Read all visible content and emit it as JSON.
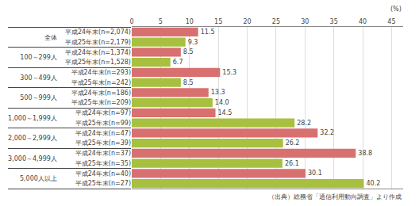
{
  "chart_data": {
    "type": "bar",
    "orientation": "horizontal",
    "categories": [
      [
        "全体",
        "平成24年末(n=2,074)"
      ],
      [
        "全体",
        "平成25年末(n=2,179)"
      ],
      [
        "100～299人",
        "平成24年末(n=1,374)"
      ],
      [
        "100～299人",
        "平成25年末(n=1,528)"
      ],
      [
        "300～499人",
        "平成24年末(n=293)"
      ],
      [
        "300～499人",
        "平成25年末(n=242)"
      ],
      [
        "500～999人",
        "平成24年末(n=186)"
      ],
      [
        "500～999人",
        "平成25年末(n=209)"
      ],
      [
        "1,000～1,999人",
        "平成24年末(n=97)"
      ],
      [
        "1,000～1,999人",
        "平成25年末(n=99)"
      ],
      [
        "2,000～2,999人",
        "平成24年末(n=47)"
      ],
      [
        "2,000～2,999人",
        "平成25年末(n=39)"
      ],
      [
        "3,000～4,999人",
        "平成24年末(n=37)"
      ],
      [
        "3,000～4,999人",
        "平成25年末(n=35)"
      ],
      [
        "5,000人以上",
        "平成24年末(n=40)"
      ],
      [
        "5,000人以上",
        "平成25年末(n=27)"
      ]
    ],
    "values": [
      11.5,
      9.3,
      8.5,
      6.7,
      15.3,
      8.5,
      13.3,
      14.0,
      14.5,
      28.2,
      32.2,
      26.2,
      38.8,
      26.1,
      30.1,
      40.2
    ],
    "value_labels": [
      "11.5",
      "9.3",
      "8.5",
      "6.7",
      "15.3",
      "8.5",
      "13.3",
      "14.0",
      "14.5",
      "28.2",
      "32.2",
      "26.2",
      "38.8",
      "26.1",
      "30.1",
      "40.2"
    ],
    "colors": [
      "#D97070",
      "#A8C040",
      "#D97070",
      "#A8C040",
      "#D97070",
      "#A8C040",
      "#D97070",
      "#A8C040",
      "#D97070",
      "#A8C040",
      "#D97070",
      "#A8C040",
      "#D97070",
      "#A8C040",
      "#D97070",
      "#A8C040"
    ],
    "xlabel": "(%)",
    "xlim": [
      0,
      47
    ],
    "xticks": [
      0,
      5,
      10,
      15,
      20,
      25,
      30,
      35,
      40,
      45
    ],
    "grid": true,
    "data_labels": true,
    "annotations": [
      "（出典）総務省「通信利用動向調査」より作成"
    ]
  }
}
